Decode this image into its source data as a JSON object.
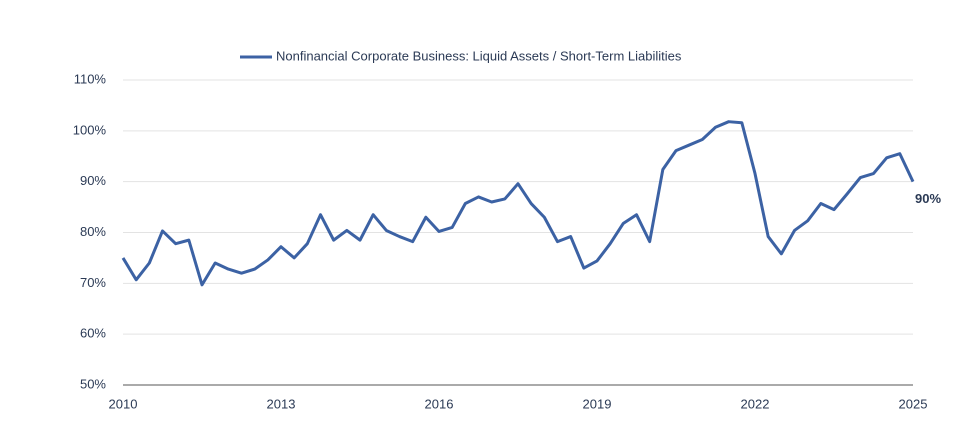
{
  "chart_data": {
    "type": "line",
    "series": [
      {
        "name": "Nonfinancial Corporate Business: Liquid Assets / Short-Term Liabilities",
        "color": "#3c62a4",
        "x": [
          2010,
          2010.25,
          2010.5,
          2010.75,
          2011,
          2011.25,
          2011.5,
          2011.75,
          2012,
          2012.25,
          2012.5,
          2012.75,
          2013,
          2013.25,
          2013.5,
          2013.75,
          2014,
          2014.25,
          2014.5,
          2014.75,
          2015,
          2015.25,
          2015.5,
          2015.75,
          2016,
          2016.25,
          2016.5,
          2016.75,
          2017,
          2017.25,
          2017.5,
          2017.75,
          2018,
          2018.25,
          2018.5,
          2018.75,
          2019,
          2019.25,
          2019.5,
          2019.75,
          2020,
          2020.25,
          2020.5,
          2020.75,
          2021,
          2021.25,
          2021.5,
          2021.75,
          2022,
          2022.25,
          2022.5,
          2022.75,
          2023,
          2023.25,
          2023.5,
          2023.75,
          2024,
          2024.25,
          2024.5,
          2024.75,
          2025
        ],
        "values": [
          75,
          70.7,
          74,
          80.3,
          77.8,
          78.5,
          69.7,
          74,
          72.8,
          72,
          72.8,
          74.6,
          77.2,
          75,
          77.8,
          83.5,
          78.5,
          80.4,
          78.5,
          83.5,
          80.4,
          79.2,
          78.2,
          83,
          80.2,
          81,
          85.7,
          87,
          86,
          86.6,
          89.6,
          85.7,
          83,
          78.2,
          79.2,
          73,
          74.4,
          77.8,
          81.8,
          83.5,
          78.2,
          92.4,
          96.1,
          97.2,
          98.3,
          100.7,
          101.8,
          101.6,
          91.6,
          79.2,
          75.8,
          80.4,
          82.3,
          85.7,
          84.5,
          87.6,
          90.8,
          91.6,
          94.7,
          95.5,
          90
        ]
      }
    ],
    "annotations": [
      {
        "label": "90%",
        "value": 90
      }
    ],
    "xlim": [
      2010,
      2025
    ],
    "xticks": [
      2010,
      2013,
      2016,
      2019,
      2022,
      2025
    ],
    "ylim": [
      50,
      110
    ],
    "yticks": [
      {
        "value": 50,
        "label": "50%"
      },
      {
        "value": 60,
        "label": "60%"
      },
      {
        "value": 70,
        "label": "70%"
      },
      {
        "value": 80,
        "label": "80%"
      },
      {
        "value": 90,
        "label": "90%"
      },
      {
        "value": 100,
        "label": "100%"
      },
      {
        "value": 110,
        "label": "110%"
      }
    ],
    "grid": true,
    "legend": "top"
  }
}
